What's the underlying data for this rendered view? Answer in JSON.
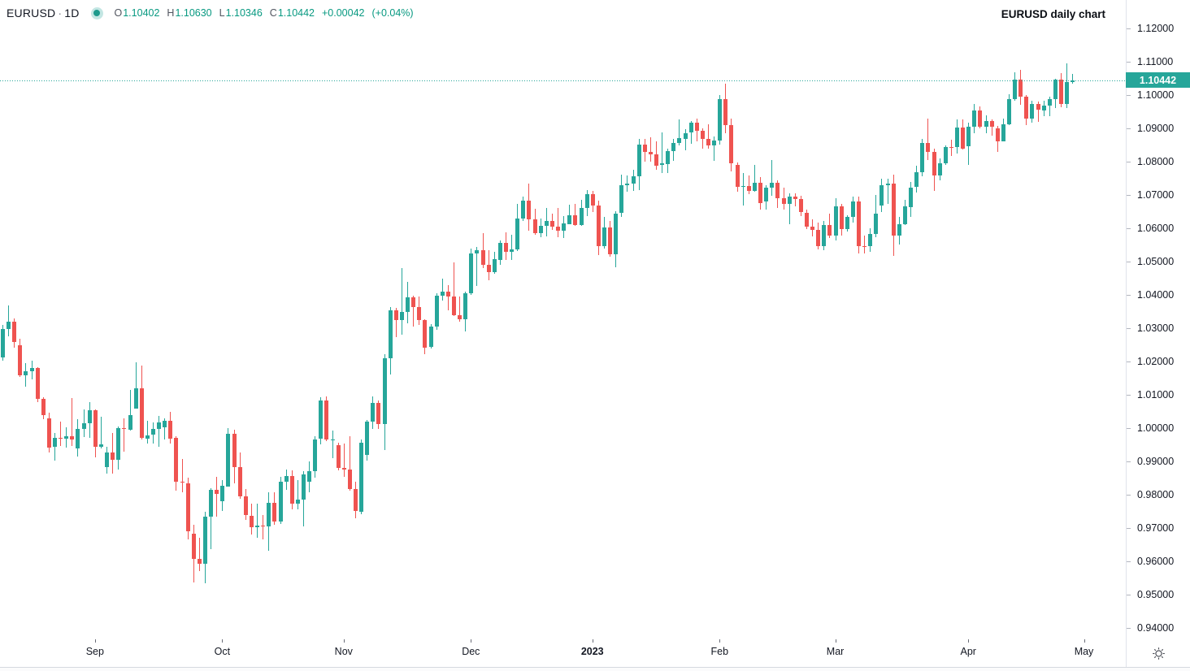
{
  "header": {
    "symbol": "EURUSD",
    "separator": "·",
    "timeframe": "1D",
    "status_dot_color": "#1d9a8c",
    "ohlc": {
      "o_label": "O",
      "o": "1.10402",
      "h_label": "H",
      "h": "1.10630",
      "l_label": "L",
      "l": "1.10346",
      "c_label": "C",
      "c": "1.10442",
      "change": "+0.00042",
      "change_pct": "(+0.04%)"
    }
  },
  "annotation": {
    "title": "EURUSD daily chart"
  },
  "price_axis": {
    "labels": [
      "1.12000",
      "1.11000",
      "1.10000",
      "1.09000",
      "1.08000",
      "1.07000",
      "1.06000",
      "1.05000",
      "1.04000",
      "1.03000",
      "1.02000",
      "1.01000",
      "1.00000",
      "0.99000",
      "0.98000",
      "0.97000",
      "0.96000",
      "0.95000",
      "0.94000"
    ],
    "last_price_badge": "1.10442"
  },
  "time_axis": {
    "ticks": [
      {
        "label": "Sep",
        "index": 16
      },
      {
        "label": "Oct",
        "index": 38
      },
      {
        "label": "Nov",
        "index": 59
      },
      {
        "label": "Dec",
        "index": 81
      },
      {
        "label": "2023",
        "index": 102,
        "bold": true
      },
      {
        "label": "Feb",
        "index": 124
      },
      {
        "label": "Mar",
        "index": 144
      },
      {
        "label": "Apr",
        "index": 167
      },
      {
        "label": "May",
        "index": 187
      }
    ]
  },
  "colors": {
    "up": "#26a69a",
    "down": "#ef5350",
    "value_text": "#089981",
    "badge_bg": "#26a69a",
    "last_price_line": "#26a69a",
    "axis_text": "#131722",
    "border": "#e0e3eb"
  },
  "icons": {
    "gear": "settings-gear",
    "status_dot": "market-status-dot"
  },
  "chart_data": {
    "type": "candlestick",
    "title": "EURUSD daily chart",
    "symbol": "EURUSD",
    "timeframe": "1D",
    "x_range": "Aug 2022 - May 2023",
    "y_axis": {
      "min": 0.94,
      "max": 1.12,
      "tick_step": 0.01
    },
    "grid": false,
    "last_price": 1.10442,
    "candles": [
      [
        1.0212,
        1.031,
        1.0202,
        1.0298
      ],
      [
        1.0298,
        1.0368,
        1.0276,
        1.032
      ],
      [
        1.032,
        1.033,
        1.0242,
        1.0258
      ],
      [
        1.025,
        1.0268,
        1.0154,
        1.016
      ],
      [
        1.016,
        1.0195,
        1.0124,
        1.0171
      ],
      [
        1.0171,
        1.0202,
        1.0146,
        1.018
      ],
      [
        1.018,
        1.0184,
        1.008,
        1.0088
      ],
      [
        1.0088,
        1.0092,
        1.0026,
        1.004
      ],
      [
        1.003,
        1.0046,
        0.9926,
        0.9942
      ],
      [
        0.9942,
        0.9985,
        0.9901,
        0.997
      ],
      [
        0.997,
        1.0019,
        0.9945,
        0.9967
      ],
      [
        0.9967,
        1.0003,
        0.9941,
        0.9975
      ],
      [
        0.9975,
        1.009,
        0.9945,
        0.9965
      ],
      [
        0.994,
        1.0027,
        0.9914,
        0.9998
      ],
      [
        0.9998,
        1.0055,
        0.9972,
        1.0015
      ],
      [
        1.0015,
        1.0079,
        0.9972,
        1.0054
      ],
      [
        1.0054,
        1.0055,
        0.991,
        0.9945
      ],
      [
        0.9945,
        1.0033,
        0.9939,
        0.9952
      ],
      [
        0.9885,
        0.9945,
        0.9864,
        0.9928
      ],
      [
        0.9928,
        0.9986,
        0.9863,
        0.9905
      ],
      [
        0.9905,
        1.0005,
        0.9876,
        1.0
      ],
      [
        1.0,
        1.0029,
        0.993,
        0.9997
      ],
      [
        0.9997,
        1.0114,
        0.9992,
        1.004
      ],
      [
        1.006,
        1.0198,
        1.0058,
        1.012
      ],
      [
        1.012,
        1.0187,
        0.9964,
        0.997
      ],
      [
        0.997,
        1.0023,
        0.9955,
        0.9979
      ],
      [
        0.9979,
        1.0018,
        0.9954,
        0.9997
      ],
      [
        0.9997,
        1.0036,
        0.9944,
        1.0016
      ],
      [
        1.0003,
        1.0029,
        0.9965,
        1.0023
      ],
      [
        1.0023,
        1.005,
        0.9955,
        0.997
      ],
      [
        0.997,
        0.9976,
        0.9813,
        0.9838
      ],
      [
        0.9838,
        0.9908,
        0.9807,
        0.9835
      ],
      [
        0.9835,
        0.9852,
        0.9667,
        0.969
      ],
      [
        0.9683,
        0.9709,
        0.9536,
        0.9608
      ],
      [
        0.9608,
        0.967,
        0.957,
        0.9594
      ],
      [
        0.9594,
        0.975,
        0.9535,
        0.9735
      ],
      [
        0.9735,
        0.9819,
        0.9635,
        0.9815
      ],
      [
        0.9815,
        0.9853,
        0.9733,
        0.9802
      ],
      [
        0.978,
        0.9844,
        0.9751,
        0.9826
      ],
      [
        0.9826,
        0.9999,
        0.9824,
        0.9984
      ],
      [
        0.9984,
        0.9995,
        0.9835,
        0.9883
      ],
      [
        0.9883,
        0.9926,
        0.9788,
        0.9794
      ],
      [
        0.9794,
        0.9818,
        0.9726,
        0.9737
      ],
      [
        0.9737,
        0.9774,
        0.9681,
        0.9703
      ],
      [
        0.9703,
        0.9773,
        0.967,
        0.9707
      ],
      [
        0.9707,
        0.974,
        0.9668,
        0.9704
      ],
      [
        0.9704,
        0.9807,
        0.9632,
        0.9775
      ],
      [
        0.9775,
        0.9808,
        0.971,
        0.972
      ],
      [
        0.972,
        0.9853,
        0.9712,
        0.984
      ],
      [
        0.984,
        0.9875,
        0.9813,
        0.9856
      ],
      [
        0.9856,
        0.9874,
        0.9757,
        0.9773
      ],
      [
        0.9773,
        0.9845,
        0.9756,
        0.9785
      ],
      [
        0.9785,
        0.987,
        0.9705,
        0.9861
      ],
      [
        0.984,
        0.9899,
        0.9806,
        0.9871
      ],
      [
        0.9871,
        0.9976,
        0.9852,
        0.9967
      ],
      [
        0.9967,
        1.0093,
        0.9952,
        1.0082
      ],
      [
        1.0082,
        1.0094,
        0.9959,
        0.9965
      ],
      [
        0.9965,
        0.9993,
        0.991,
        0.9965
      ],
      [
        0.995,
        0.9955,
        0.9872,
        0.9881
      ],
      [
        0.9881,
        0.9953,
        0.9853,
        0.9875
      ],
      [
        0.9875,
        0.9976,
        0.9812,
        0.9817
      ],
      [
        0.9817,
        0.984,
        0.973,
        0.975
      ],
      [
        0.975,
        0.9966,
        0.9741,
        0.9957
      ],
      [
        0.992,
        1.0025,
        0.9903,
        1.002
      ],
      [
        1.002,
        1.0096,
        0.9999,
        1.0075
      ],
      [
        1.0075,
        1.0084,
        0.9998,
        1.0012
      ],
      [
        1.0012,
        1.0222,
        0.9935,
        1.021
      ],
      [
        1.021,
        1.0364,
        1.0162,
        1.0354
      ],
      [
        1.0354,
        1.036,
        1.0271,
        1.0325
      ],
      [
        1.0325,
        1.048,
        1.0279,
        1.035
      ],
      [
        1.035,
        1.0438,
        1.0314,
        1.0393
      ],
      [
        1.0393,
        1.0397,
        1.0305,
        1.0363
      ],
      [
        1.0363,
        1.0395,
        1.031,
        1.0325
      ],
      [
        1.0325,
        1.0327,
        1.0222,
        1.0243
      ],
      [
        1.0243,
        1.0312,
        1.024,
        1.0305
      ],
      [
        1.0305,
        1.0405,
        1.0296,
        1.0397
      ],
      [
        1.0397,
        1.0448,
        1.0382,
        1.041
      ],
      [
        1.041,
        1.0429,
        1.0354,
        1.0395
      ],
      [
        1.0395,
        1.0497,
        1.0336,
        1.034
      ],
      [
        1.034,
        1.0394,
        1.0319,
        1.0328
      ],
      [
        1.0328,
        1.041,
        1.029,
        1.0406
      ],
      [
        1.0406,
        1.0539,
        1.04,
        1.0525
      ],
      [
        1.0525,
        1.0545,
        1.0428,
        1.0535
      ],
      [
        1.0535,
        1.0585,
        1.0479,
        1.049
      ],
      [
        1.049,
        1.0533,
        1.0443,
        1.0467
      ],
      [
        1.0467,
        1.053,
        1.0463,
        1.0507
      ],
      [
        1.0507,
        1.0563,
        1.049,
        1.0557
      ],
      [
        1.0557,
        1.0587,
        1.0504,
        1.053
      ],
      [
        1.053,
        1.058,
        1.0505,
        1.0537
      ],
      [
        1.0537,
        1.0672,
        1.053,
        1.0629
      ],
      [
        1.0629,
        1.0695,
        1.0622,
        1.0683
      ],
      [
        1.0683,
        1.0735,
        1.0594,
        1.0627
      ],
      [
        1.0627,
        1.0658,
        1.058,
        1.0585
      ],
      [
        1.0585,
        1.0629,
        1.0574,
        1.0607
      ],
      [
        1.0607,
        1.066,
        1.0575,
        1.0622
      ],
      [
        1.0622,
        1.0644,
        1.0595,
        1.0604
      ],
      [
        1.0604,
        1.066,
        1.0573,
        1.0593
      ],
      [
        1.0593,
        1.0636,
        1.0571,
        1.0614
      ],
      [
        1.0614,
        1.067,
        1.0611,
        1.064
      ],
      [
        1.064,
        1.0672,
        1.0605,
        1.061
      ],
      [
        1.061,
        1.0686,
        1.0609,
        1.066
      ],
      [
        1.066,
        1.0714,
        1.0637,
        1.0702
      ],
      [
        1.0702,
        1.0713,
        1.065,
        1.0668
      ],
      [
        1.0668,
        1.0683,
        1.0519,
        1.0546
      ],
      [
        1.0546,
        1.0635,
        1.054,
        1.0603
      ],
      [
        1.0603,
        1.0621,
        1.0514,
        1.0522
      ],
      [
        1.0522,
        1.0651,
        1.0483,
        1.0644
      ],
      [
        1.0645,
        1.0761,
        1.0634,
        1.0729
      ],
      [
        1.0729,
        1.0759,
        1.0711,
        1.0734
      ],
      [
        1.0734,
        1.0776,
        1.0712,
        1.0756
      ],
      [
        1.0756,
        1.0868,
        1.0714,
        1.0852
      ],
      [
        1.0852,
        1.0869,
        1.08,
        1.083
      ],
      [
        1.083,
        1.0874,
        1.0802,
        1.0822
      ],
      [
        1.0822,
        1.086,
        1.0775,
        1.0788
      ],
      [
        1.0788,
        1.0887,
        1.0766,
        1.0794
      ],
      [
        1.0794,
        1.084,
        1.0766,
        1.0832
      ],
      [
        1.0832,
        1.0868,
        1.0802,
        1.0856
      ],
      [
        1.0856,
        1.0927,
        1.0848,
        1.087
      ],
      [
        1.087,
        1.0898,
        1.0835,
        1.0886
      ],
      [
        1.0886,
        1.0923,
        1.0855,
        1.0916
      ],
      [
        1.0916,
        1.093,
        1.0861,
        1.0892
      ],
      [
        1.0892,
        1.09,
        1.0838,
        1.0868
      ],
      [
        1.0868,
        1.0913,
        1.084,
        1.0849
      ],
      [
        1.0849,
        1.0875,
        1.0802,
        1.0863
      ],
      [
        1.0863,
        1.1001,
        1.0853,
        1.0988
      ],
      [
        1.0988,
        1.1033,
        1.0885,
        1.091
      ],
      [
        1.091,
        1.0929,
        1.0771,
        1.0795
      ],
      [
        1.079,
        1.0798,
        1.0709,
        1.0725
      ],
      [
        1.0725,
        1.0766,
        1.0669,
        1.0727
      ],
      [
        1.0727,
        1.0759,
        1.0702,
        1.0713
      ],
      [
        1.0713,
        1.0791,
        1.0711,
        1.0737
      ],
      [
        1.0737,
        1.0753,
        1.0656,
        1.0677
      ],
      [
        1.068,
        1.073,
        1.0656,
        1.0722
      ],
      [
        1.0722,
        1.0804,
        1.0697,
        1.0736
      ],
      [
        1.0736,
        1.0743,
        1.0661,
        1.069
      ],
      [
        1.069,
        1.0721,
        1.0655,
        1.0672
      ],
      [
        1.0672,
        1.0705,
        1.0613,
        1.0694
      ],
      [
        1.0694,
        1.0706,
        1.0668,
        1.0687
      ],
      [
        1.0687,
        1.0697,
        1.0636,
        1.0647
      ],
      [
        1.0647,
        1.0656,
        1.0598,
        1.0605
      ],
      [
        1.0605,
        1.0628,
        1.0577,
        1.0595
      ],
      [
        1.0595,
        1.0617,
        1.0536,
        1.0546
      ],
      [
        1.0546,
        1.0621,
        1.0533,
        1.0609
      ],
      [
        1.0609,
        1.0645,
        1.0572,
        1.0577
      ],
      [
        1.0577,
        1.0691,
        1.0565,
        1.0666
      ],
      [
        1.0666,
        1.0673,
        1.0577,
        1.0598
      ],
      [
        1.0598,
        1.0638,
        1.059,
        1.0634
      ],
      [
        1.0634,
        1.0694,
        1.0616,
        1.068
      ],
      [
        1.068,
        1.0695,
        1.0524,
        1.0547
      ],
      [
        1.0547,
        1.0577,
        1.0523,
        1.0545
      ],
      [
        1.0545,
        1.0601,
        1.0531,
        1.0582
      ],
      [
        1.0582,
        1.0701,
        1.0575,
        1.0643
      ],
      [
        1.067,
        1.0749,
        1.065,
        1.073
      ],
      [
        1.073,
        1.075,
        1.0674,
        1.0734
      ],
      [
        1.0734,
        1.076,
        1.0516,
        1.0577
      ],
      [
        1.0577,
        1.0635,
        1.0551,
        1.0611
      ],
      [
        1.0611,
        1.0686,
        1.0611,
        1.0665
      ],
      [
        1.0665,
        1.0738,
        1.0632,
        1.0723
      ],
      [
        1.0723,
        1.0789,
        1.0708,
        1.0768
      ],
      [
        1.0768,
        1.0869,
        1.0758,
        1.0857
      ],
      [
        1.0857,
        1.093,
        1.0805,
        1.083
      ],
      [
        1.083,
        1.084,
        1.0713,
        1.076
      ],
      [
        1.076,
        1.081,
        1.0745,
        1.0796
      ],
      [
        1.0796,
        1.0849,
        1.0791,
        1.0845
      ],
      [
        1.0845,
        1.0867,
        1.0819,
        1.0843
      ],
      [
        1.0843,
        1.0926,
        1.0824,
        1.0902
      ],
      [
        1.0902,
        1.0927,
        1.0837,
        1.0839
      ],
      [
        1.0845,
        1.0916,
        1.0788,
        1.0904
      ],
      [
        1.0904,
        1.0973,
        1.0884,
        1.0953
      ],
      [
        1.0953,
        1.0966,
        1.0899,
        1.0905
      ],
      [
        1.0905,
        1.0938,
        1.0885,
        1.0921
      ],
      [
        1.0921,
        1.0926,
        1.0877,
        1.0903
      ],
      [
        1.09,
        1.0908,
        1.0831,
        1.0861
      ],
      [
        1.0861,
        1.0929,
        1.086,
        1.0913
      ],
      [
        1.0913,
        1.1003,
        1.091,
        1.0988
      ],
      [
        1.0988,
        1.1068,
        1.0982,
        1.1046
      ],
      [
        1.1046,
        1.1076,
        1.0972,
        1.0994
      ],
      [
        1.0994,
        1.0999,
        1.0909,
        1.0927
      ],
      [
        1.0927,
        1.0983,
        1.0916,
        1.0972
      ],
      [
        1.0972,
        1.098,
        1.0918,
        1.0955
      ],
      [
        1.0955,
        1.0984,
        1.0938,
        1.0969
      ],
      [
        1.0969,
        1.0995,
        1.0937,
        1.0988
      ],
      [
        1.0988,
        1.105,
        1.0963,
        1.1046
      ],
      [
        1.1046,
        1.1067,
        1.0964,
        1.0973
      ],
      [
        1.0973,
        1.1095,
        1.0961,
        1.104
      ],
      [
        1.10402,
        1.1063,
        1.10346,
        1.10442
      ]
    ]
  }
}
